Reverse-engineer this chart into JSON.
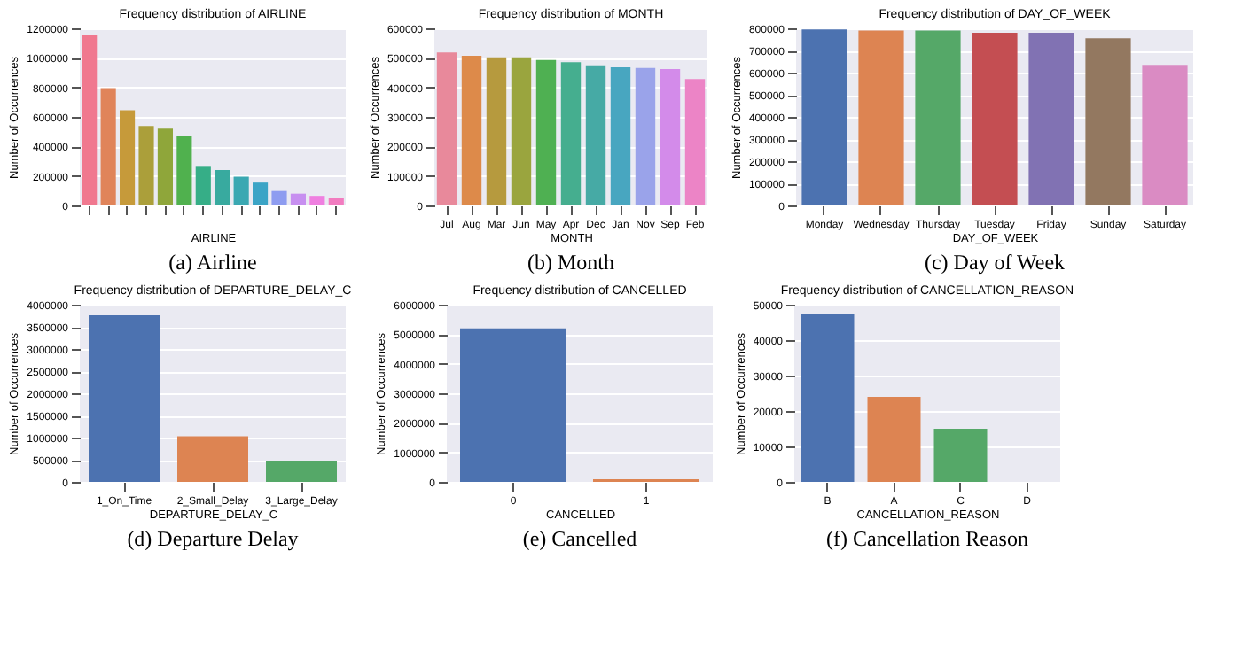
{
  "chart_data": [
    {
      "type": "bar",
      "title": "Frequency distribution of AIRLINE",
      "xlabel": "AIRLINE",
      "ylabel": "Number of Occurrences",
      "categories": [
        null,
        null,
        null,
        null,
        null,
        null,
        null,
        null,
        null,
        null,
        null,
        null,
        null,
        null
      ],
      "values": [
        1155000,
        795000,
        645000,
        538000,
        520000,
        468000,
        268000,
        240000,
        195000,
        155000,
        98000,
        80000,
        65000,
        52000
      ],
      "colors": [
        "#f0788f",
        "#e0845a",
        "#c69a3a",
        "#ab9f3a",
        "#8fa63a",
        "#50b14e",
        "#36ae87",
        "#38aa9f",
        "#3aa8b2",
        "#3ba4c6",
        "#8e9cf0",
        "#c78ff0",
        "#ef7fe0",
        "#f27cc0"
      ],
      "ylim": [
        0,
        1200000
      ],
      "yticks": [
        0,
        200000,
        400000,
        600000,
        800000,
        1000000,
        1200000
      ],
      "grid": "y",
      "annotations": [
        "(a) Airline"
      ]
    },
    {
      "type": "bar",
      "title": "Frequency distribution of MONTH",
      "xlabel": "MONTH",
      "ylabel": "Number of Occurrences",
      "categories": [
        "Jul",
        "Aug",
        "Mar",
        "Jun",
        "May",
        "Apr",
        "Dec",
        "Jan",
        "Nov",
        "Sep",
        "Feb"
      ],
      "values": [
        518000,
        507000,
        502000,
        502000,
        493000,
        485000,
        475000,
        468000,
        466000,
        462000,
        428000
      ],
      "colors": [
        "#e8899b",
        "#dd8a4a",
        "#b69a3e",
        "#9aa53e",
        "#4fb052",
        "#45ae8f",
        "#46aaa5",
        "#48a6c0",
        "#9aa3ea",
        "#d38bea",
        "#ec84c6"
      ],
      "ylim": [
        0,
        600000
      ],
      "yticks": [
        0,
        100000,
        200000,
        300000,
        400000,
        500000,
        600000
      ],
      "grid": "y",
      "annotations": [
        "(b) Month"
      ]
    },
    {
      "type": "bar",
      "title": "Frequency distribution of DAY_OF_WEEK",
      "xlabel": "DAY_OF_WEEK",
      "ylabel": "Number of Occurrences",
      "categories": [
        "Monday",
        "Wednesday",
        "Thursday",
        "Tuesday",
        "Friday",
        "Sunday",
        "Saturday"
      ],
      "values": [
        795000,
        790000,
        790000,
        780000,
        780000,
        755000,
        635000
      ],
      "colors": [
        "#4c72b0",
        "#dd8452",
        "#55a868",
        "#c44e52",
        "#8172b3",
        "#937860",
        "#da8bc3"
      ],
      "ylim": [
        0,
        800000
      ],
      "yticks": [
        0,
        100000,
        200000,
        300000,
        400000,
        500000,
        600000,
        700000,
        800000
      ],
      "grid": "y",
      "annotations": [
        "(c) Day of Week"
      ]
    },
    {
      "type": "bar",
      "title": "Frequency distribution of DEPARTURE_DELAY_C",
      "xlabel": "DEPARTURE_DELAY_C",
      "ylabel": "Number of Occurrences",
      "categories": [
        "1_On_Time",
        "2_Small_Delay",
        "3_Large_Delay"
      ],
      "values": [
        3760000,
        1030000,
        480000
      ],
      "colors": [
        "#4c72b0",
        "#dd8452",
        "#55a868"
      ],
      "ylim": [
        0,
        4000000
      ],
      "yticks": [
        0,
        500000,
        1000000,
        1500000,
        2000000,
        2500000,
        3000000,
        3500000,
        4000000
      ],
      "grid": "y",
      "annotations": [
        "(d) Departure Delay"
      ]
    },
    {
      "type": "bar",
      "title": "Frequency distribution of CANCELLED",
      "xlabel": "CANCELLED",
      "ylabel": "Number of Occurrences",
      "categories": [
        "0",
        "1"
      ],
      "values": [
        5200000,
        90000
      ],
      "colors": [
        "#4c72b0",
        "#dd8452"
      ],
      "ylim": [
        0,
        6000000
      ],
      "yticks": [
        0,
        1000000,
        2000000,
        3000000,
        4000000,
        5000000,
        6000000
      ],
      "grid": "y",
      "annotations": [
        "(e) Cancelled"
      ]
    },
    {
      "type": "bar",
      "title": "Frequency distribution of CANCELLATION_REASON",
      "xlabel": "CANCELLATION_REASON",
      "ylabel": "Number of Occurrences",
      "categories": [
        "B",
        "A",
        "C",
        "D"
      ],
      "values": [
        47500,
        24000,
        15000,
        null
      ],
      "colors": [
        "#4c72b0",
        "#dd8452",
        "#55a868",
        "#c44e52"
      ],
      "ylim": [
        0,
        50000
      ],
      "yticks": [
        0,
        10000,
        20000,
        30000,
        40000,
        50000
      ],
      "grid": "y",
      "annotations": [
        "(f) Cancellation Reason"
      ]
    }
  ]
}
